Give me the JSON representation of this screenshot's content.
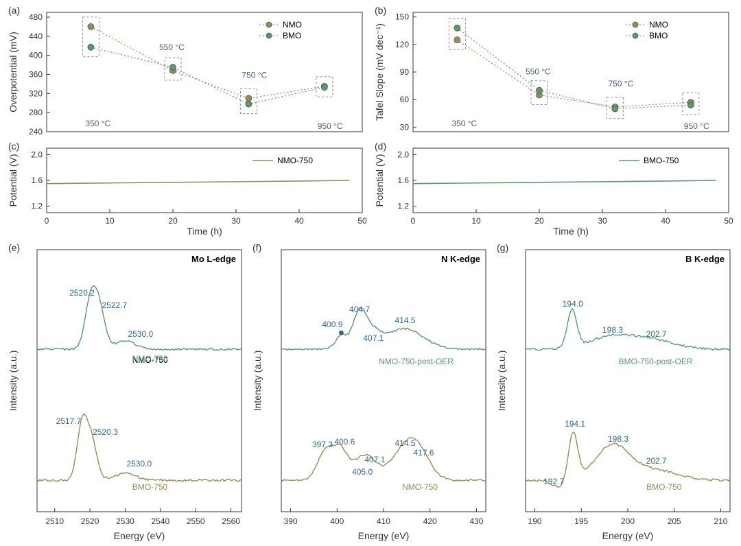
{
  "colors": {
    "nmo": "#9a8a5a",
    "bmo": "#5a9a6a",
    "nmo_line": "#b8a878",
    "bmo_line": "#7aaa8a",
    "axis": "#333333",
    "dash": "#888888",
    "temp": "#4a5a8a",
    "peak": "#2a6aa0"
  },
  "panelA": {
    "letter": "(a)",
    "ylabel": "Overpotential (mV)",
    "ylim": [
      240,
      490
    ],
    "yticks": [
      240,
      280,
      320,
      360,
      400,
      440,
      480
    ],
    "xlim": [
      0,
      50
    ],
    "nmo": [
      [
        7,
        460
      ],
      [
        20,
        368
      ],
      [
        32,
        310
      ],
      [
        44,
        335
      ]
    ],
    "bmo": [
      [
        7,
        417
      ],
      [
        20,
        375
      ],
      [
        32,
        298
      ],
      [
        44,
        333
      ]
    ],
    "temps": [
      "350 °C",
      "550 °C",
      "750 °C",
      "950 °C"
    ],
    "legend": [
      "NMO",
      "BMO"
    ]
  },
  "panelB": {
    "letter": "(b)",
    "ylabel": "Tafel Slope (mV dec⁻¹)",
    "ylim": [
      25,
      155
    ],
    "yticks": [
      30,
      60,
      90,
      120,
      150
    ],
    "xlim": [
      0,
      50
    ],
    "nmo": [
      [
        7,
        125
      ],
      [
        20,
        65
      ],
      [
        32,
        52
      ],
      [
        44,
        57
      ]
    ],
    "bmo": [
      [
        7,
        138
      ],
      [
        20,
        70
      ],
      [
        32,
        50
      ],
      [
        44,
        54
      ]
    ],
    "temps": [
      "350 °C",
      "550 °C",
      "750 °C",
      "950 °C"
    ],
    "legend": [
      "NMO",
      "BMO"
    ]
  },
  "panelC": {
    "letter": "(c)",
    "ylabel": "Potential (V)",
    "xlabel": "Time (h)",
    "ylim": [
      1.1,
      2.1
    ],
    "yticks": [
      1.2,
      1.6,
      2.0
    ],
    "xlim": [
      0,
      50
    ],
    "xticks": [
      0,
      10,
      20,
      30,
      40,
      50
    ],
    "series": {
      "label": "NMO-750",
      "color": "#9a8a5a",
      "data": [
        [
          0,
          1.55
        ],
        [
          10,
          1.56
        ],
        [
          20,
          1.57
        ],
        [
          30,
          1.58
        ],
        [
          40,
          1.59
        ],
        [
          48,
          1.6
        ]
      ]
    }
  },
  "panelD": {
    "letter": "(d)",
    "ylabel": "Potential (V)",
    "xlabel": "Time (h)",
    "ylim": [
      1.1,
      2.1
    ],
    "yticks": [
      1.2,
      1.6,
      2.0
    ],
    "xlim": [
      0,
      50
    ],
    "xticks": [
      0,
      10,
      20,
      30,
      40,
      50
    ],
    "series": {
      "label": "BMO-750",
      "color": "#5a9a6a",
      "data": [
        [
          0,
          1.55
        ],
        [
          10,
          1.56
        ],
        [
          20,
          1.57
        ],
        [
          30,
          1.58
        ],
        [
          40,
          1.59
        ],
        [
          48,
          1.6
        ]
      ]
    }
  },
  "panelE": {
    "letter": "(e)",
    "ylabel": "Intensity (a.u.)",
    "xlabel": "Energy (eV)",
    "title": "Mo L-edge",
    "xlim": [
      2505,
      2563
    ],
    "xticks": [
      2510,
      2520,
      2530,
      2540,
      2550,
      2560
    ],
    "top": {
      "label": "NMO-750",
      "color": "#5a9a6a",
      "peaks": [
        "2520.2",
        "2522.7",
        "2530.0"
      ]
    },
    "bot": {
      "label": "BMO-750",
      "color": "#9a8a5a",
      "peaks": [
        "2517.7",
        "2520.3",
        "2530.0"
      ]
    }
  },
  "panelF": {
    "letter": "(f)",
    "ylabel": "Intensity (a.u.)",
    "xlabel": "Energy (eV)",
    "title": "N K-edge",
    "xlim": [
      388,
      432
    ],
    "xticks": [
      390,
      400,
      410,
      420,
      430
    ],
    "top": {
      "label": "NMO-750-post-OER",
      "color": "#5a9a6a",
      "peaks": [
        "400.9",
        "404.7",
        "407.1",
        "414.5"
      ]
    },
    "bot": {
      "label": "NMO-750",
      "color": "#9a8a5a",
      "peaks": [
        "397.3",
        "400.6",
        "405.0",
        "407.1",
        "414.5",
        "417.6"
      ]
    }
  },
  "panelG": {
    "letter": "(g)",
    "ylabel": "Intensity (a.u.)",
    "xlabel": "Energy (eV)",
    "title": "B K-edge",
    "xlim": [
      189,
      211
    ],
    "xticks": [
      190,
      195,
      200,
      205,
      210
    ],
    "top": {
      "label": "BMO-750-post-OER",
      "color": "#5a9a6a",
      "peaks": [
        "194.0",
        "198.3",
        "202.7"
      ]
    },
    "bot": {
      "label": "BMO-750",
      "color": "#9a8a5a",
      "peaks": [
        "192.7",
        "194.1",
        "198.3",
        "202.7"
      ]
    }
  }
}
